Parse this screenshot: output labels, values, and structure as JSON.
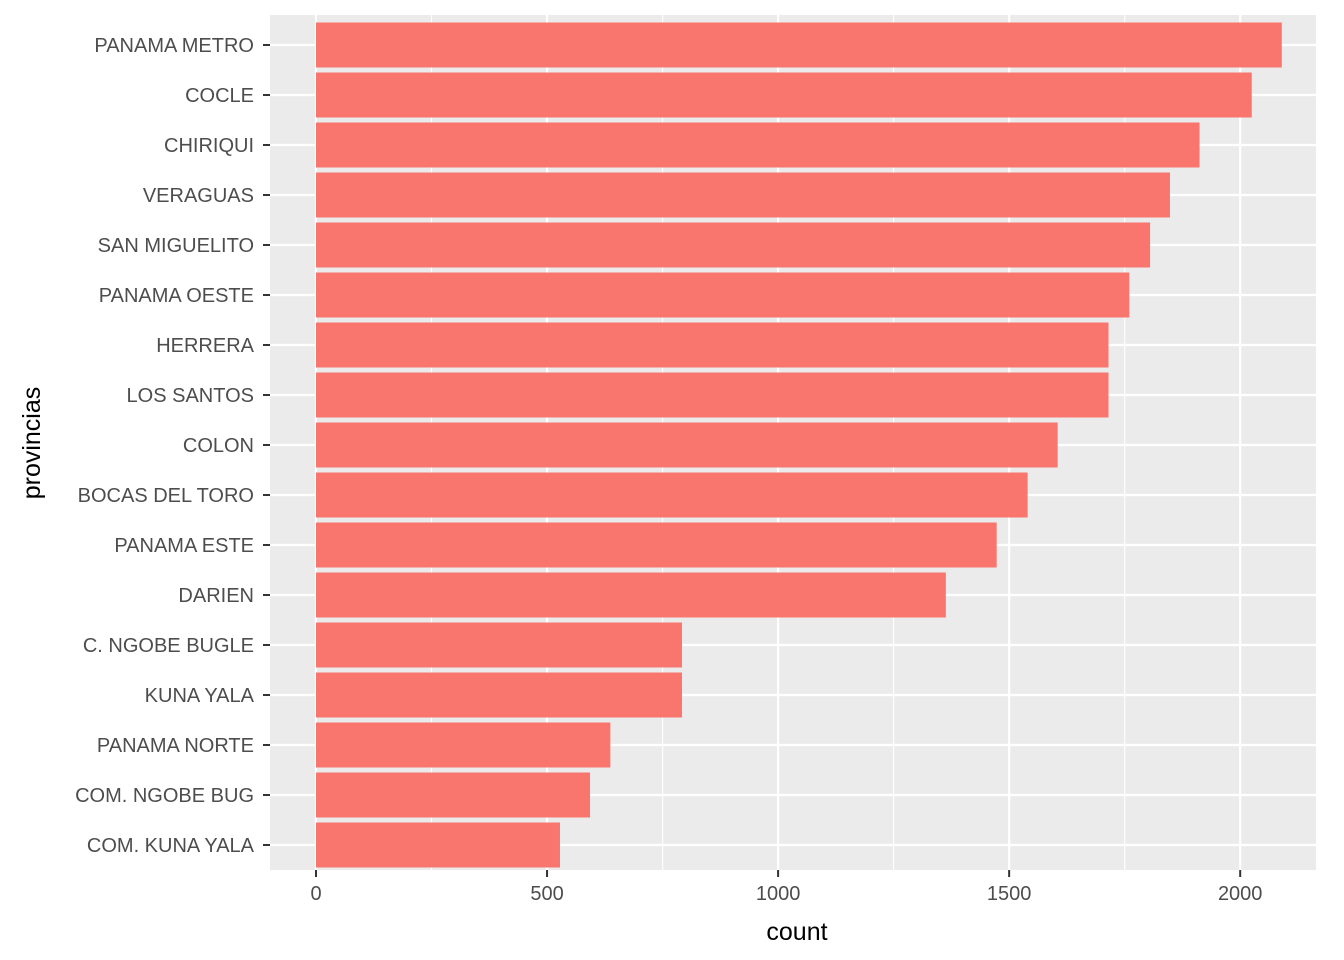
{
  "chart_data": {
    "type": "bar",
    "orientation": "horizontal",
    "xlabel": "count",
    "ylabel": "provincias",
    "xlim": [
      -100,
      2160
    ],
    "x_ticks": [
      0,
      500,
      1000,
      1500,
      2000
    ],
    "x_tick_labels": [
      "0",
      "500",
      "1000",
      "1500",
      "2000"
    ],
    "grid": true,
    "legend": "none",
    "colors": {
      "bar": "#F8766D",
      "panel": "#EBEBEB",
      "grid_major": "#FFFFFF",
      "tick_text": "#4D4D4D",
      "axis_tick": "#333333",
      "axis_title": "#000000"
    },
    "categories": [
      "PANAMA METRO",
      "COCLE",
      "CHIRIQUI",
      "VERAGUAS",
      "SAN MIGUELITO",
      "PANAMA OESTE",
      "HERRERA",
      "LOS SANTOS",
      "COLON",
      "BOCAS DEL TORO",
      "PANAMA ESTE",
      "DARIEN",
      "C. NGOBE BUGLE",
      "KUNA YALA",
      "PANAMA NORTE",
      "COM. NGOBE BUG",
      "COM. KUNA YALA"
    ],
    "values": [
      2090,
      2025,
      1912,
      1848,
      1805,
      1760,
      1715,
      1715,
      1605,
      1540,
      1473,
      1363,
      792,
      792,
      637,
      593,
      528
    ]
  }
}
